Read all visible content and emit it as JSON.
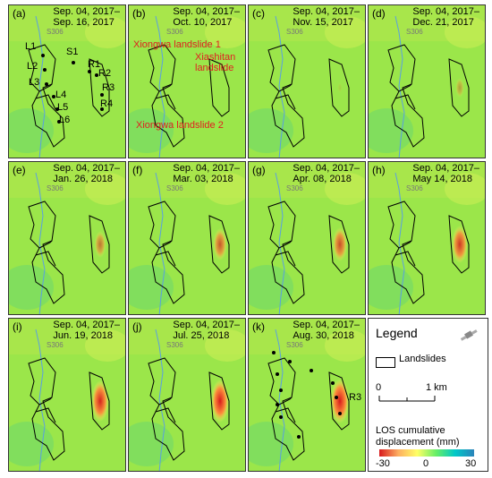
{
  "panels": [
    {
      "label": "(a)",
      "date1": "Sep. 04, 2017–",
      "date2": "Sep. 16, 2017",
      "road": "S306"
    },
    {
      "label": "(b)",
      "date1": "Sep. 04, 2017–",
      "date2": "Oct. 10, 2017",
      "road": "S306"
    },
    {
      "label": "(c)",
      "date1": "Sep. 04, 2017–",
      "date2": "Nov. 15, 2017",
      "road": "S306"
    },
    {
      "label": "(d)",
      "date1": "Sep. 04, 2017–",
      "date2": "Dec. 21, 2017",
      "road": "S306"
    },
    {
      "label": "(e)",
      "date1": "Sep. 04, 2017–",
      "date2": "Jan. 26, 2018",
      "road": "S306"
    },
    {
      "label": "(f)",
      "date1": "Sep. 04, 2017–",
      "date2": "Mar. 03, 2018",
      "road": "S306"
    },
    {
      "label": "(g)",
      "date1": "Sep. 04, 2017–",
      "date2": "Apr. 08, 2018",
      "road": "S306"
    },
    {
      "label": "(h)",
      "date1": "Sep. 04, 2017–",
      "date2": "May 14, 2018",
      "road": "S306"
    },
    {
      "label": "(i)",
      "date1": "Sep. 04, 2017–",
      "date2": "Jun. 19, 2018",
      "road": "S306"
    },
    {
      "label": "(j)",
      "date1": "Sep. 04, 2017–",
      "date2": "Jul. 25, 2018",
      "road": "S306"
    },
    {
      "label": "(k)",
      "date1": "Sep. 04, 2017–",
      "date2": "Aug. 30, 2018",
      "road": "S306"
    }
  ],
  "points": {
    "L1": "L1",
    "L2": "L2",
    "L3": "L3",
    "L4": "L4",
    "L5": "L5",
    "L6": "L6",
    "S1": "S1",
    "R1": "R1",
    "R2": "R2",
    "R3": "R3",
    "R4": "R4"
  },
  "names": {
    "xiongwa1": "Xiongwa landslide 1",
    "xiashitan": "Xiashitan landslide",
    "xiongwa2": "Xiongwa landslide 2"
  },
  "legend": {
    "title": "Legend",
    "landslides": "Landslides",
    "scale_zero": "0",
    "scale_km": "1 km",
    "los": "LOS cumulative displacement (mm)",
    "tick_min": "-30",
    "tick_mid": "0",
    "tick_max": "30",
    "colors": {
      "negative": "#d7191c",
      "zero": "#66ee66",
      "positive": "#2b83ba"
    }
  }
}
